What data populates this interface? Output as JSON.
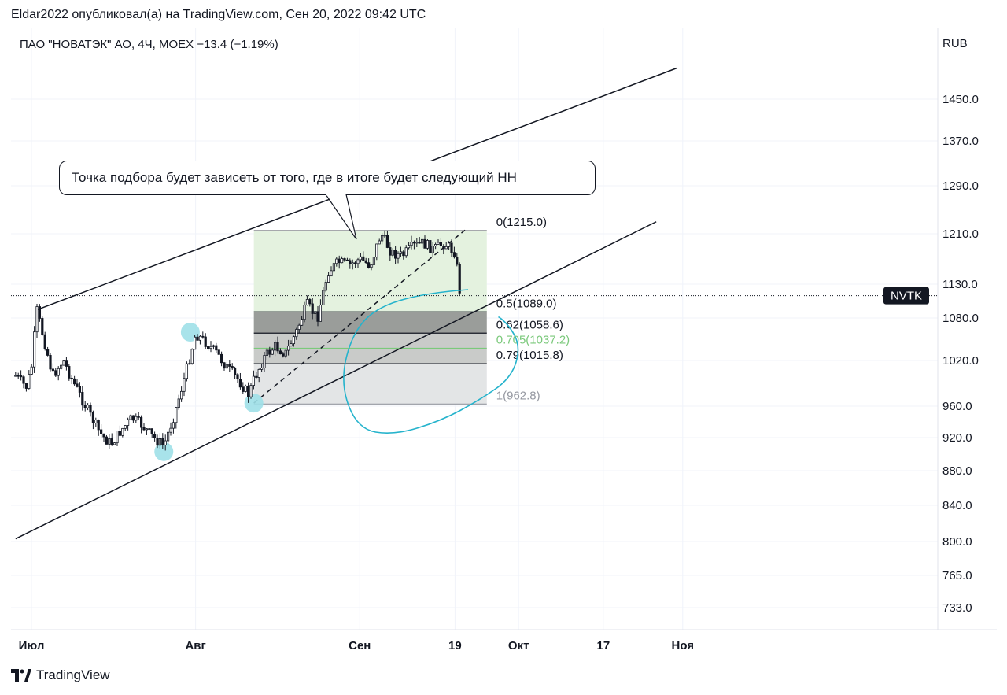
{
  "header": {
    "publish_line": "Eldar2022 опубликовал(а) на TradingView.com, Сен 20, 2022 09:42 UTC",
    "symbol_line": "ПАО \"НОВАТЭК\" АО, 4Ч, MOEX  −13.4 (−1.19%)"
  },
  "footer": {
    "brand": "TradingView",
    "logo_icon": "tradingview-logo-icon"
  },
  "annotation": {
    "text": "Точка подбора будет зависеть от того, где в итоге будет следующий НН"
  },
  "price_tag": {
    "label": "NVTK",
    "price": 1113
  },
  "chart_data": {
    "type": "candlestick",
    "currency": "RUB",
    "y_ticks": [
      "1450.0",
      "1370.0",
      "1290.0",
      "1210.0",
      "1130.0",
      "1080.0",
      "1020.0",
      "960.0",
      "920.0",
      "880.0",
      "840.0",
      "800.0",
      "765.0",
      "733.0"
    ],
    "y_tick_values": [
      1450,
      1370,
      1290,
      1210,
      1130,
      1080,
      1020,
      960,
      920,
      880,
      840,
      800,
      765,
      733
    ],
    "x_ticks": [
      "Июл",
      "Авг",
      "Сен",
      "19",
      "Окт",
      "17",
      "Ноя"
    ],
    "x_tick_dates": [
      "2022-07-01",
      "2022-08-01",
      "2022-09-01",
      "2022-09-19",
      "2022-10-01",
      "2022-10-17",
      "2022-11-01"
    ],
    "price_path": [
      [
        "2022-06-28",
        1000
      ],
      [
        "2022-06-30",
        985
      ],
      [
        "2022-07-01",
        1010
      ],
      [
        "2022-07-02",
        1092
      ],
      [
        "2022-07-04",
        1030
      ],
      [
        "2022-07-05",
        1000
      ],
      [
        "2022-07-07",
        1020
      ],
      [
        "2022-07-09",
        990
      ],
      [
        "2022-07-12",
        950
      ],
      [
        "2022-07-14",
        925
      ],
      [
        "2022-07-16",
        912
      ],
      [
        "2022-07-18",
        930
      ],
      [
        "2022-07-20",
        945
      ],
      [
        "2022-07-22",
        935
      ],
      [
        "2022-07-24",
        920
      ],
      [
        "2022-07-26",
        910
      ],
      [
        "2022-07-28",
        950
      ],
      [
        "2022-07-30",
        1000
      ],
      [
        "2022-08-01",
        1058
      ],
      [
        "2022-08-03",
        1045
      ],
      [
        "2022-08-05",
        1030
      ],
      [
        "2022-08-07",
        1010
      ],
      [
        "2022-08-09",
        995
      ],
      [
        "2022-08-11",
        975
      ],
      [
        "2022-08-12",
        995
      ],
      [
        "2022-08-14",
        1025
      ],
      [
        "2022-08-16",
        1040
      ],
      [
        "2022-08-18",
        1030
      ],
      [
        "2022-08-20",
        1060
      ],
      [
        "2022-08-22",
        1100
      ],
      [
        "2022-08-23",
        1090
      ],
      [
        "2022-08-24",
        1080
      ],
      [
        "2022-08-26",
        1150
      ],
      [
        "2022-08-28",
        1165
      ],
      [
        "2022-08-30",
        1160
      ],
      [
        "2022-09-01",
        1170
      ],
      [
        "2022-09-03",
        1160
      ],
      [
        "2022-09-05",
        1210
      ],
      [
        "2022-09-07",
        1180
      ],
      [
        "2022-09-09",
        1175
      ],
      [
        "2022-09-11",
        1190
      ],
      [
        "2022-09-13",
        1195
      ],
      [
        "2022-09-15",
        1185
      ],
      [
        "2022-09-17",
        1195
      ],
      [
        "2022-09-19",
        1180
      ],
      [
        "2022-09-20",
        1113
      ]
    ],
    "fibonacci": [
      {
        "label": "0(1215.0)",
        "level": 0,
        "price": 1215.0
      },
      {
        "label": "0.5(1089.0)",
        "level": 0.5,
        "price": 1089.0
      },
      {
        "label": "0.62(1058.6)",
        "level": 0.62,
        "price": 1058.6
      },
      {
        "label": "0.705(1037.2)",
        "level": 0.705,
        "price": 1037.2
      },
      {
        "label": "0.79(1015.8)",
        "level": 0.79,
        "price": 1015.8
      },
      {
        "label": "1(962.8)",
        "level": 1,
        "price": 962.8
      }
    ],
    "trendlines": [
      {
        "name": "upper-channel",
        "p1": [
          "2022-07-02",
          1092
        ],
        "p2": [
          "2022-10-31",
          1510
        ]
      },
      {
        "name": "lower-channel",
        "p1": [
          "2022-06-28",
          803
        ],
        "p2": [
          "2022-10-27",
          1230
        ]
      },
      {
        "name": "dashed-trend",
        "p1": [
          "2022-08-12",
          964
        ],
        "p2": [
          "2022-09-21",
          1217
        ]
      }
    ],
    "fib_range": {
      "start": "2022-08-12",
      "end": "2022-09-25"
    },
    "highlighted_points": [
      {
        "date": "2022-07-26",
        "price": 903
      },
      {
        "date": "2022-07-31",
        "price": 1060
      },
      {
        "date": "2022-08-12",
        "price": 964
      }
    ],
    "colors": {
      "fib_top_zone": "#e4f2df",
      "fib_dark_zone": "#9a9d9a",
      "fib_mid_zone": "#c9cbc9",
      "fib_bottom_zone": "#e3e5e6",
      "fib_0705": "#7bc97b",
      "circle_marker": "#9ee0e8",
      "freehand": "#25b3cc",
      "candle": "#131722"
    }
  }
}
